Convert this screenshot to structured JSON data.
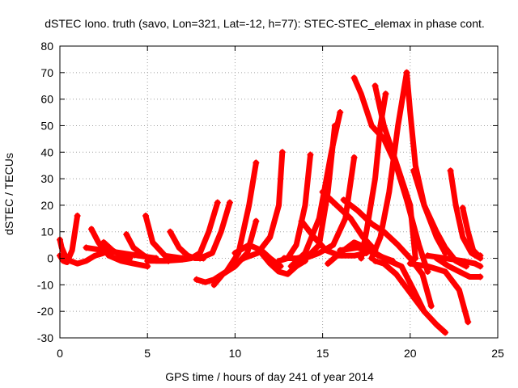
{
  "chart_data": {
    "type": "line",
    "title": "dSTEC Iono. truth (savo, Lon=321, Lat=-12, h=77): STEC-STEC_elemax in phase cont.",
    "xlabel": "GPS time / hours of day 241 of year 2014",
    "ylabel": "dSTEC  / TECUs",
    "xlim": [
      0,
      25
    ],
    "ylim": [
      -30,
      80
    ],
    "xticks": [
      0,
      5,
      10,
      15,
      20,
      25
    ],
    "yticks": [
      -30,
      -20,
      -10,
      0,
      10,
      20,
      30,
      40,
      50,
      60,
      70,
      80
    ],
    "grid": true,
    "color": "#ff0000",
    "marker": "+",
    "series": [
      {
        "x": [
          0.0,
          0.2,
          0.4,
          0.7,
          1.0
        ],
        "y": [
          1,
          -1,
          -1.5,
          3,
          16
        ]
      },
      {
        "x": [
          0.0,
          0.1,
          0.3,
          0.6,
          1.0,
          1.5,
          2.0,
          3.0
        ],
        "y": [
          7,
          4,
          1,
          -1,
          -2,
          -1,
          1,
          3
        ]
      },
      {
        "x": [
          1.8,
          2.2,
          2.8,
          3.5,
          4.2,
          5.0
        ],
        "y": [
          11,
          6,
          1,
          -1,
          -2,
          -3
        ]
      },
      {
        "x": [
          1.5,
          2.5,
          3.5,
          4.5,
          5.5
        ],
        "y": [
          4,
          3,
          2,
          1,
          0
        ]
      },
      {
        "x": [
          2.5,
          3.0,
          3.5,
          4.0
        ],
        "y": [
          6,
          3,
          1,
          0
        ]
      },
      {
        "x": [
          3.8,
          4.2,
          4.8,
          5.5,
          6.2
        ],
        "y": [
          9,
          4,
          1,
          -1,
          -1
        ]
      },
      {
        "x": [
          4.9,
          5.3,
          6.0,
          7.0
        ],
        "y": [
          16,
          6,
          1,
          0
        ]
      },
      {
        "x": [
          6.3,
          6.8,
          7.3,
          7.7,
          8.2
        ],
        "y": [
          10,
          4,
          1,
          0,
          0
        ]
      },
      {
        "x": [
          5.0,
          6.0,
          7.0,
          7.5,
          8.0,
          8.5,
          9.0
        ],
        "y": [
          -1,
          -1,
          -0.5,
          0,
          2,
          10,
          21
        ]
      },
      {
        "x": [
          8.0,
          8.7,
          9.2,
          9.7
        ],
        "y": [
          0,
          2,
          10,
          21
        ]
      },
      {
        "x": [
          7.8,
          8.3,
          8.8,
          9.5,
          10.2,
          10.8,
          11.2
        ],
        "y": [
          -8,
          -9,
          -8,
          -5,
          2,
          20,
          36
        ]
      },
      {
        "x": [
          8.8,
          9.3,
          10.0,
          10.7,
          11.2
        ],
        "y": [
          -10,
          -6,
          -3,
          2,
          14
        ]
      },
      {
        "x": [
          10.0,
          10.8,
          11.5,
          12.0,
          12.6
        ],
        "y": [
          2,
          5,
          3,
          0,
          -3
        ]
      },
      {
        "x": [
          10.5,
          11.3,
          12.0,
          12.5,
          12.7
        ],
        "y": [
          0,
          2,
          8,
          20,
          40
        ]
      },
      {
        "x": [
          11.5,
          12.0,
          12.5,
          13.0,
          13.5,
          14.0
        ],
        "y": [
          2,
          -2,
          -5,
          -6,
          -3,
          -1
        ]
      },
      {
        "x": [
          12.5,
          13.0,
          13.5,
          14.0,
          14.3
        ],
        "y": [
          -1,
          0,
          5,
          20,
          39
        ]
      },
      {
        "x": [
          12.8,
          13.5,
          14.2,
          14.8,
          15.3,
          15.7
        ],
        "y": [
          0,
          0,
          1,
          5,
          25,
          50
        ]
      },
      {
        "x": [
          13.2,
          14.0,
          14.8,
          15.5,
          16.0
        ],
        "y": [
          -3,
          2,
          15,
          40,
          55
        ]
      },
      {
        "x": [
          14.0,
          14.8,
          15.6,
          16.3,
          16.8
        ],
        "y": [
          0,
          2,
          5,
          15,
          38
        ]
      },
      {
        "x": [
          15.0,
          15.8,
          16.6,
          17.3,
          18.0
        ],
        "y": [
          25,
          20,
          15,
          8,
          3
        ]
      },
      {
        "x": [
          13.8,
          14.5,
          15.2,
          16.0,
          16.8,
          17.5
        ],
        "y": [
          14,
          8,
          3,
          1,
          1,
          2
        ]
      },
      {
        "x": [
          15.3,
          16.0,
          16.8,
          17.5,
          18.2,
          19.0
        ],
        "y": [
          -2,
          2,
          6,
          4,
          1,
          -1
        ]
      },
      {
        "x": [
          16.8,
          17.2,
          17.8,
          18.5,
          19.2,
          19.8,
          20.5,
          21.0
        ],
        "y": [
          68,
          62,
          50,
          45,
          35,
          22,
          5,
          -5
        ]
      },
      {
        "x": [
          17.2,
          17.5,
          18.0,
          18.3,
          18.6
        ],
        "y": [
          0,
          10,
          30,
          50,
          62
        ]
      },
      {
        "x": [
          16.2,
          17.0,
          17.8,
          18.5,
          19.3,
          20.0,
          20.7,
          21.2
        ],
        "y": [
          22,
          18,
          13,
          10,
          5,
          0,
          -6,
          -18
        ]
      },
      {
        "x": [
          16.0,
          17.0,
          18.0,
          18.8,
          19.5,
          20.2,
          20.8
        ],
        "y": [
          3,
          4,
          2,
          -1,
          -3,
          -12,
          -20
        ]
      },
      {
        "x": [
          18.0,
          18.5,
          19.2,
          20.0,
          20.8,
          21.5,
          22.0
        ],
        "y": [
          -1,
          -2,
          -6,
          -13,
          -20,
          -25,
          -28
        ]
      },
      {
        "x": [
          17.8,
          18.3,
          18.8,
          19.3,
          19.8
        ],
        "y": [
          0,
          8,
          25,
          50,
          70
        ]
      },
      {
        "x": [
          18.0,
          18.5,
          19.0,
          19.5,
          20.0,
          20.3
        ],
        "y": [
          65,
          50,
          40,
          30,
          20,
          0
        ]
      },
      {
        "x": [
          19.8,
          20.0,
          20.3,
          20.8,
          21.5,
          22.0
        ],
        "y": [
          70,
          55,
          35,
          20,
          8,
          2
        ]
      },
      {
        "x": [
          20.2,
          20.8,
          21.5,
          22.0,
          22.6,
          23.2
        ],
        "y": [
          33,
          20,
          10,
          4,
          -1,
          -3
        ]
      },
      {
        "x": [
          22.3,
          22.6,
          23.0,
          23.5,
          24.0
        ],
        "y": [
          33,
          20,
          8,
          2,
          0
        ]
      },
      {
        "x": [
          23.0,
          23.3,
          23.6,
          23.9,
          24.0
        ],
        "y": [
          19,
          10,
          3,
          1,
          1
        ]
      },
      {
        "x": [
          21.5,
          22.2,
          22.8,
          23.4,
          24.0
        ],
        "y": [
          0,
          -3,
          -5,
          -7,
          -7
        ]
      },
      {
        "x": [
          20.0,
          21.0,
          22.0,
          22.8,
          23.3
        ],
        "y": [
          -2,
          -3,
          -5,
          -12,
          -24
        ]
      },
      {
        "x": [
          21.0,
          22.0,
          23.0,
          23.7,
          24.0
        ],
        "y": [
          1,
          0,
          -1,
          -2,
          -3
        ]
      }
    ]
  }
}
